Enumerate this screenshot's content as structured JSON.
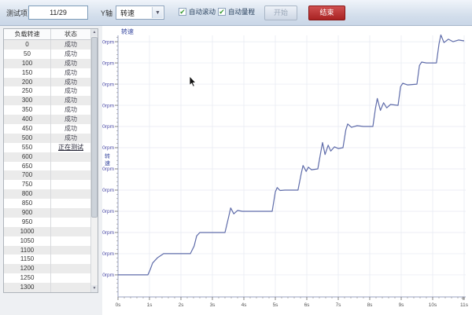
{
  "toolbar": {
    "test_item_label": "测试项",
    "test_item_value": "11/29",
    "y_axis_label": "Y轴",
    "y_axis_selected": "转速",
    "dropdown_arrow": "▼",
    "auto_scroll": {
      "label": "自动滚动",
      "checked": true,
      "check_glyph": "✔"
    },
    "auto_range": {
      "label": "自动量程",
      "checked": true,
      "check_glyph": "✔"
    },
    "start_label": "开始",
    "stop_label": "结束"
  },
  "table": {
    "headers": [
      "负载转速",
      "状态"
    ],
    "rows": [
      {
        "speed": "0",
        "status": "成功"
      },
      {
        "speed": "50",
        "status": "成功"
      },
      {
        "speed": "100",
        "status": "成功"
      },
      {
        "speed": "150",
        "status": "成功"
      },
      {
        "speed": "200",
        "status": "成功"
      },
      {
        "speed": "250",
        "status": "成功"
      },
      {
        "speed": "300",
        "status": "成功"
      },
      {
        "speed": "350",
        "status": "成功"
      },
      {
        "speed": "400",
        "status": "成功"
      },
      {
        "speed": "450",
        "status": "成功"
      },
      {
        "speed": "500",
        "status": "成功"
      },
      {
        "speed": "550",
        "status": "正在测试"
      },
      {
        "speed": "600",
        "status": ""
      },
      {
        "speed": "650",
        "status": ""
      },
      {
        "speed": "700",
        "status": ""
      },
      {
        "speed": "750",
        "status": ""
      },
      {
        "speed": "800",
        "status": ""
      },
      {
        "speed": "850",
        "status": ""
      },
      {
        "speed": "900",
        "status": ""
      },
      {
        "speed": "950",
        "status": ""
      },
      {
        "speed": "1000",
        "status": ""
      },
      {
        "speed": "1050",
        "status": ""
      },
      {
        "speed": "1100",
        "status": ""
      },
      {
        "speed": "1150",
        "status": ""
      },
      {
        "speed": "1200",
        "status": ""
      },
      {
        "speed": "1250",
        "status": ""
      },
      {
        "speed": "1300",
        "status": ""
      }
    ],
    "testing_status_text": "正在测试"
  },
  "chart_data": {
    "type": "line",
    "title": "转速",
    "y_axis_title": "转速",
    "y_unit": "rpm",
    "x_unit": "s",
    "xlim": [
      0,
      11.05
    ],
    "ylim": [
      -52,
      565
    ],
    "x_ticks": [
      0,
      1,
      2,
      3,
      4,
      5,
      6,
      7,
      8,
      9,
      10,
      11
    ],
    "y_ticks": [
      0,
      50,
      100,
      150,
      200,
      250,
      300,
      350,
      400,
      450,
      500,
      550
    ],
    "x_minor_step": 0.2,
    "y_minor_step": 10,
    "grid": true,
    "legend_position": "top-left",
    "line_color": "#5f6caa",
    "axis_color": "#9aa2c0",
    "grid_color": "#e6e9f2",
    "y_label_color": "#4747a5",
    "x_label_color": "#555555",
    "expand_glyph": "+",
    "series": [
      {
        "name": "转速",
        "points": [
          [
            0,
            0
          ],
          [
            0.95,
            0
          ],
          [
            1.02,
            12
          ],
          [
            1.1,
            28
          ],
          [
            1.25,
            40
          ],
          [
            1.45,
            50
          ],
          [
            2.3,
            50
          ],
          [
            2.42,
            68
          ],
          [
            2.5,
            92
          ],
          [
            2.6,
            100
          ],
          [
            3.4,
            100
          ],
          [
            3.52,
            138
          ],
          [
            3.58,
            158
          ],
          [
            3.68,
            144
          ],
          [
            3.8,
            152
          ],
          [
            3.95,
            150
          ],
          [
            4.9,
            150
          ],
          [
            5.0,
            196
          ],
          [
            5.06,
            206
          ],
          [
            5.15,
            199
          ],
          [
            5.3,
            200
          ],
          [
            5.72,
            200
          ],
          [
            5.82,
            238
          ],
          [
            5.88,
            258
          ],
          [
            5.98,
            244
          ],
          [
            6.05,
            254
          ],
          [
            6.15,
            248
          ],
          [
            6.35,
            250
          ],
          [
            6.44,
            288
          ],
          [
            6.5,
            312
          ],
          [
            6.58,
            284
          ],
          [
            6.68,
            306
          ],
          [
            6.76,
            292
          ],
          [
            6.88,
            302
          ],
          [
            7.0,
            298
          ],
          [
            7.15,
            300
          ],
          [
            7.24,
            342
          ],
          [
            7.3,
            356
          ],
          [
            7.42,
            348
          ],
          [
            7.6,
            352
          ],
          [
            7.8,
            350
          ],
          [
            8.1,
            350
          ],
          [
            8.18,
            392
          ],
          [
            8.24,
            416
          ],
          [
            8.34,
            388
          ],
          [
            8.44,
            406
          ],
          [
            8.54,
            394
          ],
          [
            8.66,
            402
          ],
          [
            8.9,
            400
          ],
          [
            8.98,
            444
          ],
          [
            9.05,
            452
          ],
          [
            9.2,
            448
          ],
          [
            9.5,
            450
          ],
          [
            9.58,
            494
          ],
          [
            9.65,
            502
          ],
          [
            9.8,
            500
          ],
          [
            10.12,
            500
          ],
          [
            10.2,
            544
          ],
          [
            10.26,
            566
          ],
          [
            10.36,
            548
          ],
          [
            10.5,
            556
          ],
          [
            10.65,
            550
          ],
          [
            10.82,
            554
          ],
          [
            11.0,
            552
          ]
        ]
      }
    ]
  },
  "colors": {
    "toolbar_bg": "#d4dfec",
    "stop_button": "#a82222",
    "check_green": "#3a9b35",
    "row_stripe": "#ebebeb"
  }
}
